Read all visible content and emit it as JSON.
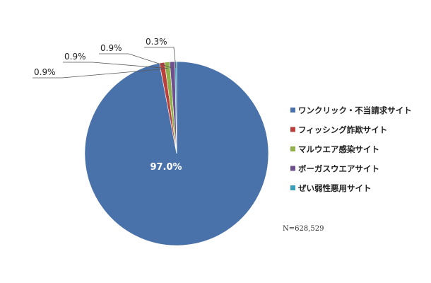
{
  "chart_data": {
    "type": "pie",
    "slices": [
      {
        "label": "ワンクリック・不当請求サイト",
        "value": 97.0,
        "value_label": "97.0%",
        "color": "#4a72aa"
      },
      {
        "label": "フィッシング詐欺サイト",
        "value": 0.9,
        "value_label": "0.9%",
        "color": "#b9403d"
      },
      {
        "label": "マルウエア感染サイト",
        "value": 0.9,
        "value_label": "0.9%",
        "color": "#8fb04a"
      },
      {
        "label": "ボーガスウエアサイト",
        "value": 0.9,
        "value_label": "0.9%",
        "color": "#6e508f"
      },
      {
        "label": "ぜい弱性悪用サイト",
        "value": 0.3,
        "value_label": "0.3%",
        "color": "#3c9fba"
      }
    ],
    "legend_position": "right",
    "sample_note": "N=628,529"
  }
}
